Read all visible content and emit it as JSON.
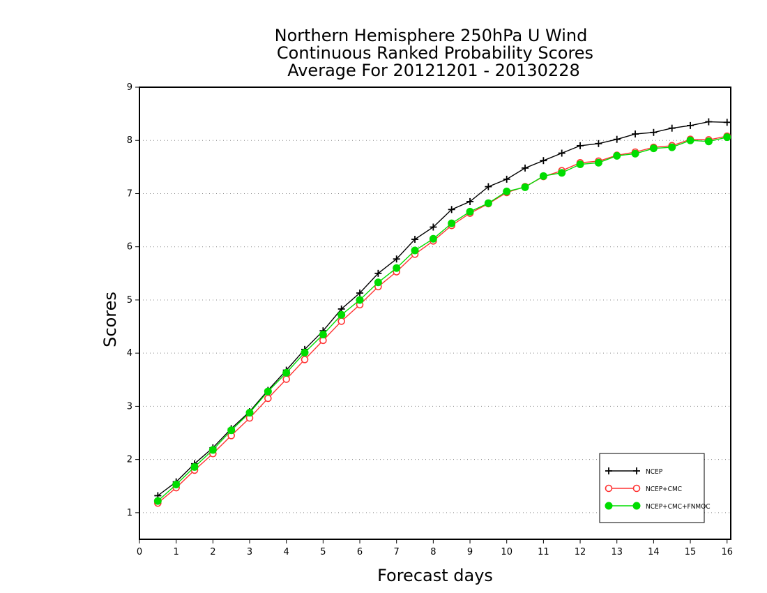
{
  "chart_data": {
    "type": "line",
    "title": [
      "Northern Hemisphere 250hPa U Wind",
      "Continuous Ranked Probability Scores",
      "Average For 20121201 - 20130228"
    ],
    "xlabel": "Forecast days",
    "ylabel": "Scores",
    "xlim": [
      0,
      16.1
    ],
    "ylim": [
      0.5,
      9
    ],
    "xticks": [
      "0",
      "1",
      "2",
      "3",
      "4",
      "5",
      "6",
      "7",
      "8",
      "9",
      "10",
      "11",
      "12",
      "13",
      "14",
      "15",
      "16"
    ],
    "yticks": [
      "1",
      "2",
      "3",
      "4",
      "5",
      "6",
      "7",
      "8",
      "9"
    ],
    "grid": "horizontal dotted",
    "legend_position": "bottom-right",
    "x": [
      0.5,
      1,
      1.5,
      2,
      2.5,
      3,
      3.5,
      4,
      4.5,
      5,
      5.5,
      6,
      6.5,
      7,
      7.5,
      8,
      8.5,
      9,
      9.5,
      10,
      10.5,
      11,
      11.5,
      12,
      12.5,
      13,
      13.5,
      14,
      14.5,
      15,
      15.5,
      16
    ],
    "series": [
      {
        "name": "NCEP",
        "color": "#000000",
        "marker": "plus",
        "values": [
          1.32,
          1.58,
          1.92,
          2.22,
          2.58,
          2.9,
          3.3,
          3.68,
          4.07,
          4.42,
          4.83,
          5.13,
          5.5,
          5.77,
          6.14,
          6.37,
          6.7,
          6.85,
          7.13,
          7.27,
          7.48,
          7.62,
          7.76,
          7.9,
          7.94,
          8.02,
          8.12,
          8.15,
          8.23,
          8.28,
          8.35,
          8.34
        ]
      },
      {
        "name": "NCEP+CMC",
        "color": "#ff3333",
        "marker": "open-circle",
        "values": [
          1.18,
          1.47,
          1.8,
          2.11,
          2.45,
          2.78,
          3.15,
          3.51,
          3.88,
          4.24,
          4.6,
          4.91,
          5.25,
          5.53,
          5.86,
          6.11,
          6.4,
          6.63,
          6.81,
          7.02,
          7.13,
          7.32,
          7.43,
          7.58,
          7.61,
          7.72,
          7.78,
          7.87,
          7.9,
          8.02,
          8.01,
          8.08
        ]
      },
      {
        "name": "NCEP+CMC+FNMOC",
        "color": "#00dd00",
        "marker": "filled-circle",
        "values": [
          1.22,
          1.53,
          1.86,
          2.18,
          2.55,
          2.88,
          3.28,
          3.63,
          4.01,
          4.35,
          4.72,
          5.0,
          5.33,
          5.6,
          5.93,
          6.15,
          6.44,
          6.66,
          6.82,
          7.04,
          7.12,
          7.33,
          7.39,
          7.55,
          7.58,
          7.71,
          7.75,
          7.85,
          7.87,
          8.0,
          7.98,
          8.06
        ]
      }
    ]
  }
}
